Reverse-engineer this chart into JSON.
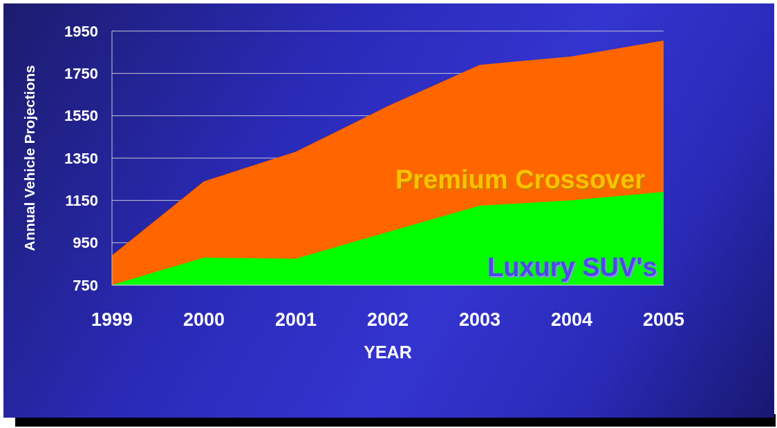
{
  "chart_data": {
    "type": "area",
    "xlabel": "YEAR",
    "ylabel": "Annual Vehicle Projections",
    "x": [
      1999,
      2000,
      2001,
      2002,
      2003,
      2004,
      2005
    ],
    "xlim": [
      1999,
      2005
    ],
    "xticks": [
      1999,
      2000,
      2001,
      2002,
      2003,
      2004,
      2005
    ],
    "ylim": [
      750,
      1950
    ],
    "yticks": [
      750,
      950,
      1150,
      1350,
      1550,
      1750,
      1950
    ],
    "grid": "y",
    "legend": false,
    "series": [
      {
        "name": "Premium Crossover",
        "color": "#ff6600",
        "values": [
          890,
          1240,
          1380,
          1595,
          1790,
          1830,
          1905
        ]
      },
      {
        "name": "Luxury SUV's",
        "color": "#00ff00",
        "values": [
          750,
          880,
          875,
          1000,
          1125,
          1150,
          1190
        ]
      }
    ]
  }
}
